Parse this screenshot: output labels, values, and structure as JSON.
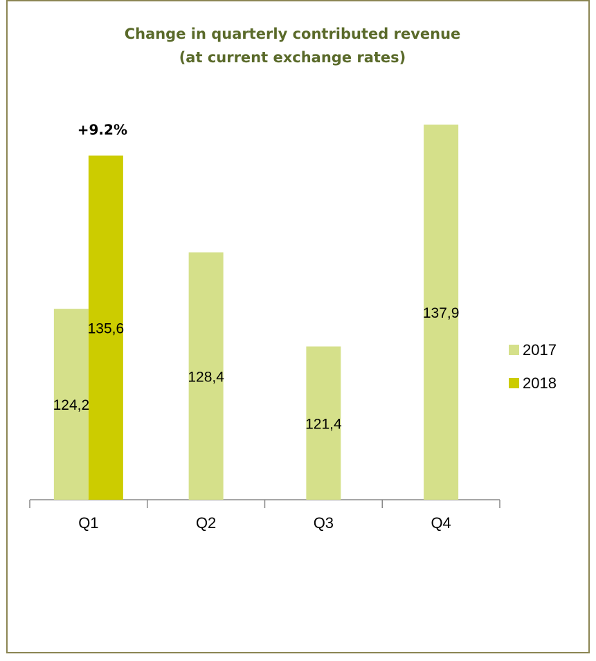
{
  "chart_data": {
    "type": "bar",
    "title_lines": [
      "Change in quarterly contributed revenue",
      "(at current exchange rates)"
    ],
    "categories": [
      "Q1",
      "Q2",
      "Q3",
      "Q4"
    ],
    "series": [
      {
        "name": "2017",
        "color": "#d5e08a",
        "values": [
          124.2,
          128.4,
          121.4,
          137.9
        ],
        "labels": [
          "124,2",
          "128,4",
          "121,4",
          "137,9"
        ]
      },
      {
        "name": "2018",
        "color": "#cccc00",
        "values": [
          135.6,
          null,
          null,
          null
        ],
        "labels": [
          "135,6",
          "",
          "",
          ""
        ]
      }
    ],
    "annotations": [
      {
        "text": "+9.2%",
        "category": "Q1",
        "series": "2018"
      }
    ],
    "ylim": [
      110,
      140
    ],
    "grid": false,
    "legend_position": "right"
  }
}
